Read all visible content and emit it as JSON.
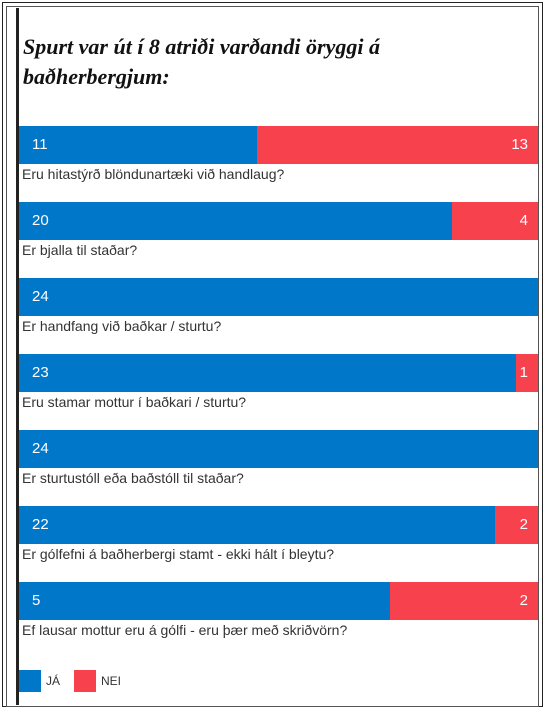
{
  "title": "Spurt var út í 8 atriði varðandi öryggi á baðherbergjum:",
  "colors": {
    "ja": "#0077c8",
    "nei": "#f7414d"
  },
  "legend": {
    "ja_label": "JÁ",
    "nei_label": "NEI"
  },
  "chart_data": {
    "type": "bar",
    "orientation": "horizontal",
    "stacked": "100%",
    "categories": [
      "Eru hitastýrð blöndunartæki við handlaug?",
      "Er bjalla til staðar?",
      "Er handfang við baðkar / sturtu?",
      "Eru stamar mottur í baðkari / sturtu?",
      "Er sturtustóll eða baðstóll til staðar?",
      "Er gólfefni á baðherbergi stamt - ekki hált í bleytu?",
      "Ef lausar mottur eru á gólfi - eru þær með skriðvörn?"
    ],
    "series": [
      {
        "name": "JÁ",
        "values": [
          11,
          20,
          24,
          23,
          24,
          22,
          5
        ]
      },
      {
        "name": "NEI",
        "values": [
          13,
          4,
          0,
          1,
          0,
          2,
          2
        ]
      }
    ],
    "legend_position": "bottom-left"
  }
}
